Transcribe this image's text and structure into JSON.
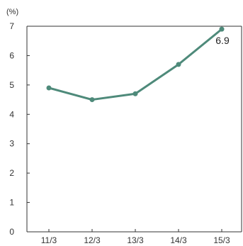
{
  "chart_data": {
    "type": "line",
    "title": "",
    "xlabel": "",
    "ylabel": "",
    "unit": "(%)",
    "categories": [
      "11/3",
      "12/3",
      "13/3",
      "14/3",
      "15/3"
    ],
    "series": [
      {
        "values": [
          4.9,
          4.5,
          4.7,
          5.7,
          6.9
        ]
      }
    ],
    "ylim": [
      0,
      7
    ],
    "yticks": [
      "0",
      "1",
      "2",
      "3",
      "4",
      "5",
      "6",
      "7"
    ],
    "data_labels": [
      {
        "index": 4,
        "text": "6.9"
      }
    ],
    "grid": false,
    "line_color": "#4e8a7a",
    "axis_color": "#333333"
  }
}
